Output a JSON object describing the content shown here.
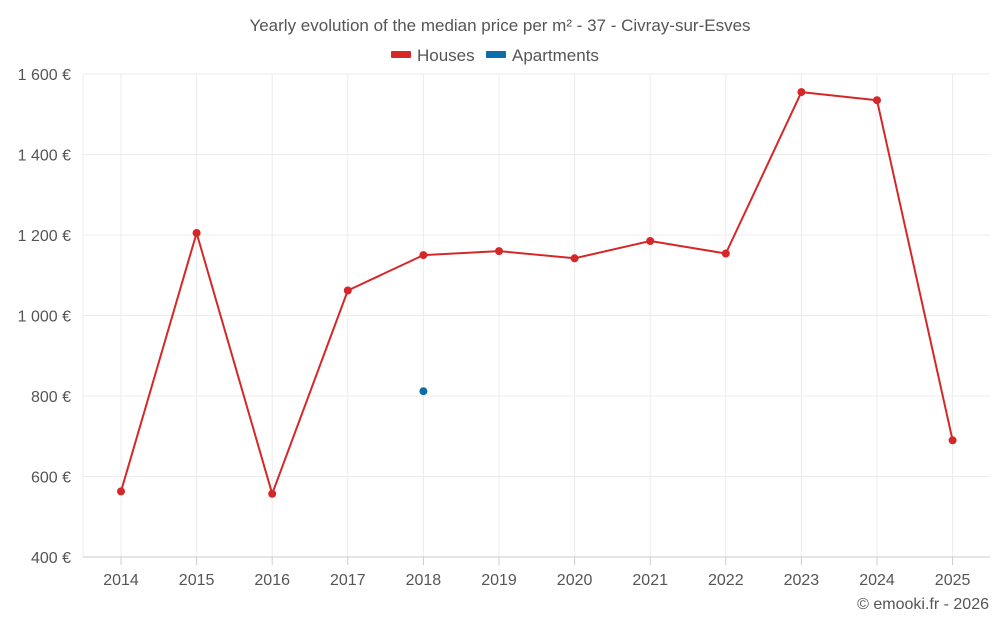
{
  "chart_data": {
    "type": "line",
    "title": "Yearly evolution of the median price per m² - 37 - Civray-sur-Esves",
    "categories": [
      "2014",
      "2015",
      "2016",
      "2017",
      "2018",
      "2019",
      "2020",
      "2021",
      "2022",
      "2023",
      "2024",
      "2025"
    ],
    "series": [
      {
        "name": "Houses",
        "color": "#d62728",
        "values": [
          563,
          1205,
          557,
          1062,
          1150,
          1160,
          1142,
          1185,
          1154,
          1555,
          1535,
          690
        ]
      },
      {
        "name": "Apartments",
        "color": "#0b6ea8",
        "values": [
          null,
          null,
          null,
          null,
          812,
          null,
          null,
          null,
          null,
          null,
          null,
          null
        ]
      }
    ],
    "ylim": [
      400,
      1600
    ],
    "yticks": [
      400,
      600,
      800,
      1000,
      1200,
      1400,
      1600
    ],
    "ytick_labels": [
      "400 €",
      "600 €",
      "800 €",
      "1 000 €",
      "1 200 €",
      "1 400 €",
      "1 600 €"
    ],
    "xlabel": "",
    "ylabel": "",
    "grid": true,
    "legend_position": "top-center"
  },
  "credit": "© emooki.fr - 2026"
}
